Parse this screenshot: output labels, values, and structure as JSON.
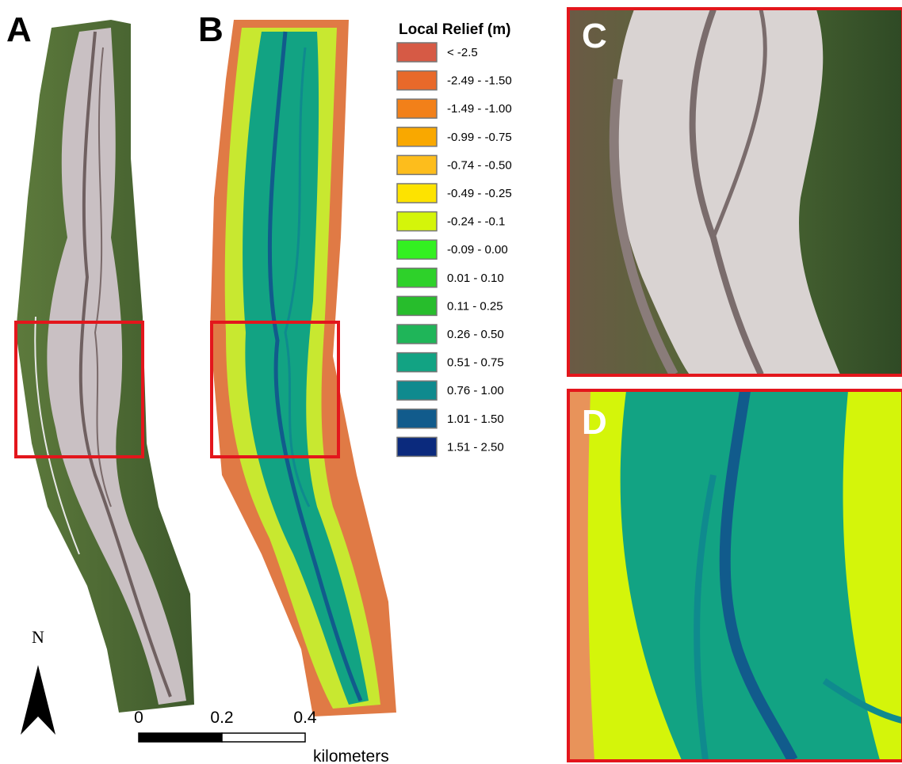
{
  "panels": [
    {
      "label": "A"
    },
    {
      "label": "B"
    },
    {
      "label": "C"
    },
    {
      "label": "D"
    }
  ],
  "legend": {
    "title": "Local Relief (m)",
    "items": [
      {
        "label": "< -2.5",
        "color": "#d65a45"
      },
      {
        "label": "-2.49 - -1.50",
        "color": "#e8692a"
      },
      {
        "label": "-1.49 - -1.00",
        "color": "#f28019"
      },
      {
        "label": "-0.99 - -0.75",
        "color": "#f9a800"
      },
      {
        "label": "-0.74 - -0.50",
        "color": "#fdbd1c"
      },
      {
        "label": "-0.49 - -0.25",
        "color": "#fde300"
      },
      {
        "label": "-0.24 - -0.1",
        "color": "#d4f50a"
      },
      {
        "label": "-0.09 - 0.00",
        "color": "#33f021"
      },
      {
        "label": "0.01 - 0.10",
        "color": "#2ed12a"
      },
      {
        "label": "0.11 - 0.25",
        "color": "#27bd2c"
      },
      {
        "label": "0.26 - 0.50",
        "color": "#1fb559"
      },
      {
        "label": "0.51 - 0.75",
        "color": "#12a383"
      },
      {
        "label": "0.76 - 1.00",
        "color": "#0f8a8e"
      },
      {
        "label": "1.01 - 1.50",
        "color": "#115b8c"
      },
      {
        "label": "1.51 - 2.50",
        "color": "#0b2a7d"
      }
    ]
  },
  "north_arrow": {
    "label": "N"
  },
  "scale_bar": {
    "ticks": [
      0,
      0.2,
      0.4
    ],
    "unit": "kilometers"
  }
}
